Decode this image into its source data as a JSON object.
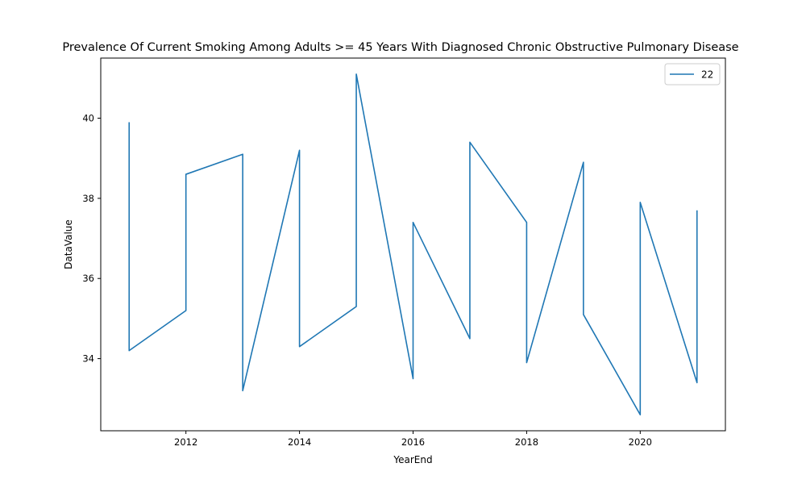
{
  "chart_data": {
    "type": "line",
    "title": "Prevalence Of Current Smoking Among Adults >= 45 Years With Diagnosed Chronic Obstructive Pulmonary Disease",
    "xlabel": "YearEnd",
    "ylabel": "DataValue",
    "xlim": [
      2010.5,
      2021.5
    ],
    "ylim": [
      32.2,
      41.5
    ],
    "x_ticks": [
      2012,
      2014,
      2016,
      2018,
      2020
    ],
    "y_ticks": [
      34,
      36,
      38,
      40
    ],
    "grid": false,
    "legend_position": "top-right",
    "series": [
      {
        "name": "22",
        "color": "#1f77b4",
        "x": [
          2011,
          2011,
          2012,
          2012,
          2013,
          2013,
          2014,
          2014,
          2015,
          2015,
          2016,
          2016,
          2017,
          2017,
          2018,
          2018,
          2019,
          2019,
          2020,
          2020,
          2021,
          2021
        ],
        "y": [
          39.9,
          34.2,
          35.2,
          38.6,
          39.1,
          33.2,
          39.2,
          34.3,
          35.3,
          41.1,
          33.5,
          37.4,
          34.5,
          39.4,
          37.4,
          33.9,
          38.9,
          35.1,
          32.6,
          37.9,
          33.4,
          37.7
        ]
      }
    ]
  }
}
